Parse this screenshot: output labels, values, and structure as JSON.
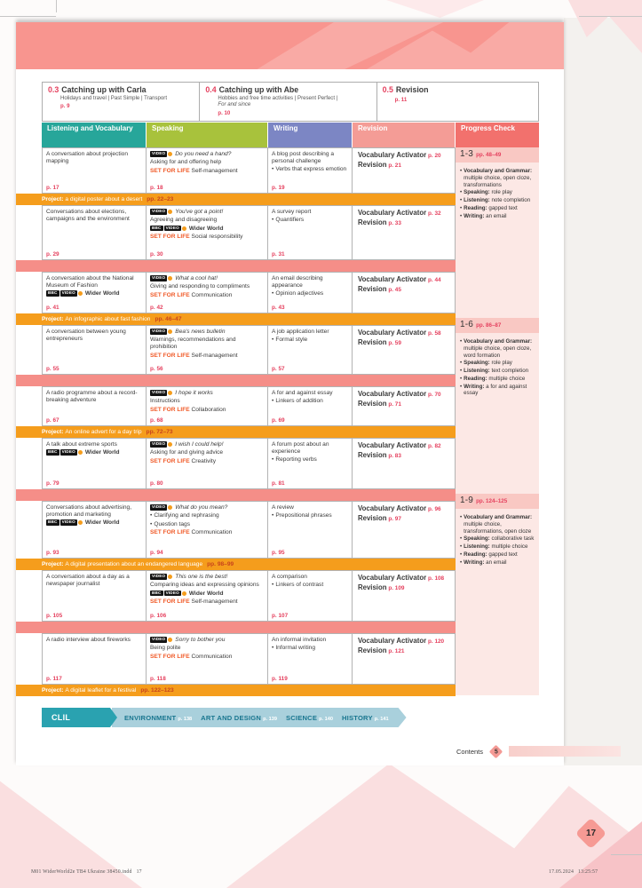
{
  "colors": {
    "teal": "#27a69a",
    "green": "#a8c23c",
    "purple": "#7c86c4",
    "salmon": "#f49c96",
    "red": "#f2716d",
    "accent": "#e5405e",
    "project_orange": "#f59d1c",
    "separator_pink": "#f58e88",
    "sfl_orange": "#f05a28"
  },
  "badges": {
    "video": "VIDEO",
    "bbc": "BBC",
    "wider_world": "Wider World",
    "sfl": "SET FOR LIFE"
  },
  "labels": {
    "vocabulary_activator": "Vocabulary Activator",
    "revision": "Revision"
  },
  "header_units": [
    {
      "number": "0.3",
      "title": "Catching up with Carla",
      "subtitle": "Holidays and travel | Past Simple | Transport",
      "page": "p. 9"
    },
    {
      "number": "0.4",
      "title": "Catching up with Abe",
      "subtitle": "Hobbies and free time activities | Present Perfect |",
      "subtitle_italic": "For and since",
      "page": "p. 10"
    },
    {
      "number": "0.5",
      "title": "Revision",
      "page": "p. 11"
    }
  ],
  "columns": [
    "Listening and Vocabulary",
    "Speaking",
    "Writing",
    "Revision",
    "Progress Check"
  ],
  "rows": [
    {
      "listening": {
        "text": "A conversation about projection mapping",
        "page": "p. 17"
      },
      "speaking": {
        "title": "Do you need a hand?",
        "lines": [
          "Asking for and offering help"
        ],
        "sfl": "Self-management",
        "page": "p. 18"
      },
      "writing": {
        "title": "A blog post describing a personal challenge",
        "bullets": [
          "Verbs that express emotion"
        ],
        "page": "p. 19"
      },
      "revision": {
        "activator_page": "p. 20",
        "revision_page": "p. 21"
      },
      "bar": {
        "type": "project",
        "prefix": "Project:",
        "text": "a digital poster about a desert",
        "pages": "pp. 22–23"
      }
    },
    {
      "listening": {
        "text": "Conversations about elections, campaigns and the environment",
        "page": "p. 29"
      },
      "speaking": {
        "title": "You've got a point!",
        "lines": [
          "Agreeing and disagreeing"
        ],
        "bbc": true,
        "sfl": "Social responsibility",
        "page": "p. 30"
      },
      "writing": {
        "title": "A survey report",
        "bullets": [
          "Quantifiers"
        ],
        "page": "p. 31"
      },
      "revision": {
        "activator_page": "p. 32",
        "revision_page": "p. 33"
      },
      "bar": {
        "type": "separator"
      }
    },
    {
      "listening": {
        "text": "A conversation about the National Museum of Fashion",
        "bbc": true,
        "page": "p. 41"
      },
      "speaking": {
        "title": "What a cool hat!",
        "lines": [
          "Giving and responding to compliments"
        ],
        "sfl": "Communication",
        "page": "p. 42"
      },
      "writing": {
        "title": "An email describing appearance",
        "bullets": [
          "Opinion adjectives"
        ],
        "page": "p. 43"
      },
      "revision": {
        "activator_page": "p. 44",
        "revision_page": "p. 45"
      },
      "bar": {
        "type": "project",
        "prefix": "Project:",
        "text": "An infographic about fast fashion",
        "pages": "pp. 46–47"
      }
    },
    {
      "listening": {
        "text": "A conversation between young entrepreneurs",
        "page": "p. 55"
      },
      "speaking": {
        "title": "Bea's news bulletin",
        "lines": [
          "Warnings, recommendations and prohibition"
        ],
        "sfl": "Self-management",
        "page": "p. 56"
      },
      "writing": {
        "title": "A job application letter",
        "bullets": [
          "Formal style"
        ],
        "page": "p. 57"
      },
      "revision": {
        "activator_page": "p. 58",
        "revision_page": "p. 59"
      },
      "bar": {
        "type": "separator"
      }
    },
    {
      "listening": {
        "text": "A radio programme about a record-breaking adventure",
        "page": "p. 67"
      },
      "speaking": {
        "title": "I hope it works",
        "lines": [
          "Instructions"
        ],
        "sfl": "Collaboration",
        "page": "p. 68"
      },
      "writing": {
        "title": "A for and against essay",
        "bullets": [
          "Linkers of addition"
        ],
        "page": "p. 69"
      },
      "revision": {
        "activator_page": "p. 70",
        "revision_page": "p. 71"
      },
      "bar": {
        "type": "project",
        "prefix": "Project:",
        "text": "An online advert for a day trip",
        "pages": "pp. 72–73"
      }
    },
    {
      "listening": {
        "text": "A talk about extreme sports",
        "bbc": true,
        "page": "p. 79"
      },
      "speaking": {
        "title": "I wish I could help!",
        "lines": [
          "Asking for and giving advice"
        ],
        "sfl": "Creativity",
        "page": "p. 80"
      },
      "writing": {
        "title": "A forum post about an experience",
        "bullets": [
          "Reporting verbs"
        ],
        "page": "p. 81"
      },
      "revision": {
        "activator_page": "p. 82",
        "revision_page": "p. 83"
      },
      "bar": {
        "type": "separator"
      }
    },
    {
      "listening": {
        "text": "Conversations about advertising, promotion and marketing",
        "bbc": true,
        "page": "p. 93"
      },
      "speaking": {
        "title": "What do you mean?",
        "bullets": [
          "Clarifying and rephrasing",
          "Question tags"
        ],
        "sfl": "Communication",
        "page": "p. 94"
      },
      "writing": {
        "title": "A review",
        "bullets": [
          "Prepositional phrases"
        ],
        "page": "p. 95"
      },
      "revision": {
        "activator_page": "p. 96",
        "revision_page": "p. 97"
      },
      "bar": {
        "type": "project",
        "prefix": "Project:",
        "text": "A digital presentation about an endangered language",
        "pages": "pp. 98–99"
      }
    },
    {
      "listening": {
        "text": "A conversation about a day as a newspaper journalist",
        "page": "p. 105"
      },
      "speaking": {
        "title": "This one is the best!",
        "lines": [
          "Comparing ideas and expressing opinions"
        ],
        "bbc": true,
        "sfl": "Self-management",
        "page": "p. 106"
      },
      "writing": {
        "title": "A comparison",
        "bullets": [
          "Linkers of contrast"
        ],
        "page": "p. 107"
      },
      "revision": {
        "activator_page": "p. 108",
        "revision_page": "p. 109"
      },
      "bar": {
        "type": "separator"
      }
    },
    {
      "listening": {
        "text": "A radio interview about fireworks",
        "page": "p. 117"
      },
      "speaking": {
        "title": "Sorry to bother you",
        "lines": [
          "Being polite"
        ],
        "sfl": "Communication",
        "page": "p. 118"
      },
      "writing": {
        "title": "An informal invitation",
        "bullets": [
          "Informal writing"
        ],
        "page": "p. 119"
      },
      "revision": {
        "activator_page": "p. 120",
        "revision_page": "p. 121"
      },
      "bar": {
        "type": "project",
        "prefix": "Project:",
        "text": "A digital leaflet for a festival",
        "pages": "pp. 122–123"
      }
    }
  ],
  "progress_sections": [
    {
      "range": "1-3",
      "pages": "pp. 48–49",
      "items": [
        {
          "label": "Vocabulary and Grammar:",
          "text": "multiple choice, open cloze, transformations"
        },
        {
          "label": "Speaking:",
          "text": "role play"
        },
        {
          "label": "Listening:",
          "text": "note completion"
        },
        {
          "label": "Reading:",
          "text": "gapped text"
        },
        {
          "label": "Writing:",
          "text": "an email"
        }
      ]
    },
    {
      "range": "1-6",
      "pages": "pp. 86–87",
      "items": [
        {
          "label": "Vocabulary and Grammar:",
          "text": "multiple choice, open cloze, word formation"
        },
        {
          "label": "Speaking:",
          "text": "role play"
        },
        {
          "label": "Listening:",
          "text": "text completion"
        },
        {
          "label": "Reading:",
          "text": "multiple choice"
        },
        {
          "label": "Writing:",
          "text": "a for and against essay"
        }
      ]
    },
    {
      "range": "1-9",
      "pages": "pp. 124–125",
      "items": [
        {
          "label": "Vocabulary and Grammar:",
          "text": "multiple choice, transformations, open cloze"
        },
        {
          "label": "Speaking:",
          "text": "collaborative task"
        },
        {
          "label": "Listening:",
          "text": "multiple choice"
        },
        {
          "label": "Reading:",
          "text": "gapped text"
        },
        {
          "label": "Writing:",
          "text": "an email"
        }
      ]
    }
  ],
  "clil": {
    "tag": "CLIL",
    "items": [
      {
        "label": "ENVIRONMENT",
        "page": "p. 138"
      },
      {
        "label": "ART AND DESIGN",
        "page": "p. 139"
      },
      {
        "label": "SCIENCE",
        "page": "p. 140"
      },
      {
        "label": "HISTORY",
        "page": "p. 141"
      }
    ]
  },
  "contents": {
    "label": "Contents",
    "page": "5"
  },
  "page_corner": {
    "number": "17"
  },
  "footer": {
    "left": "M01 WiderWorld2e TB4 Ukraine 38450.indd   17",
    "right": "17.05.2024   13:25:57"
  }
}
